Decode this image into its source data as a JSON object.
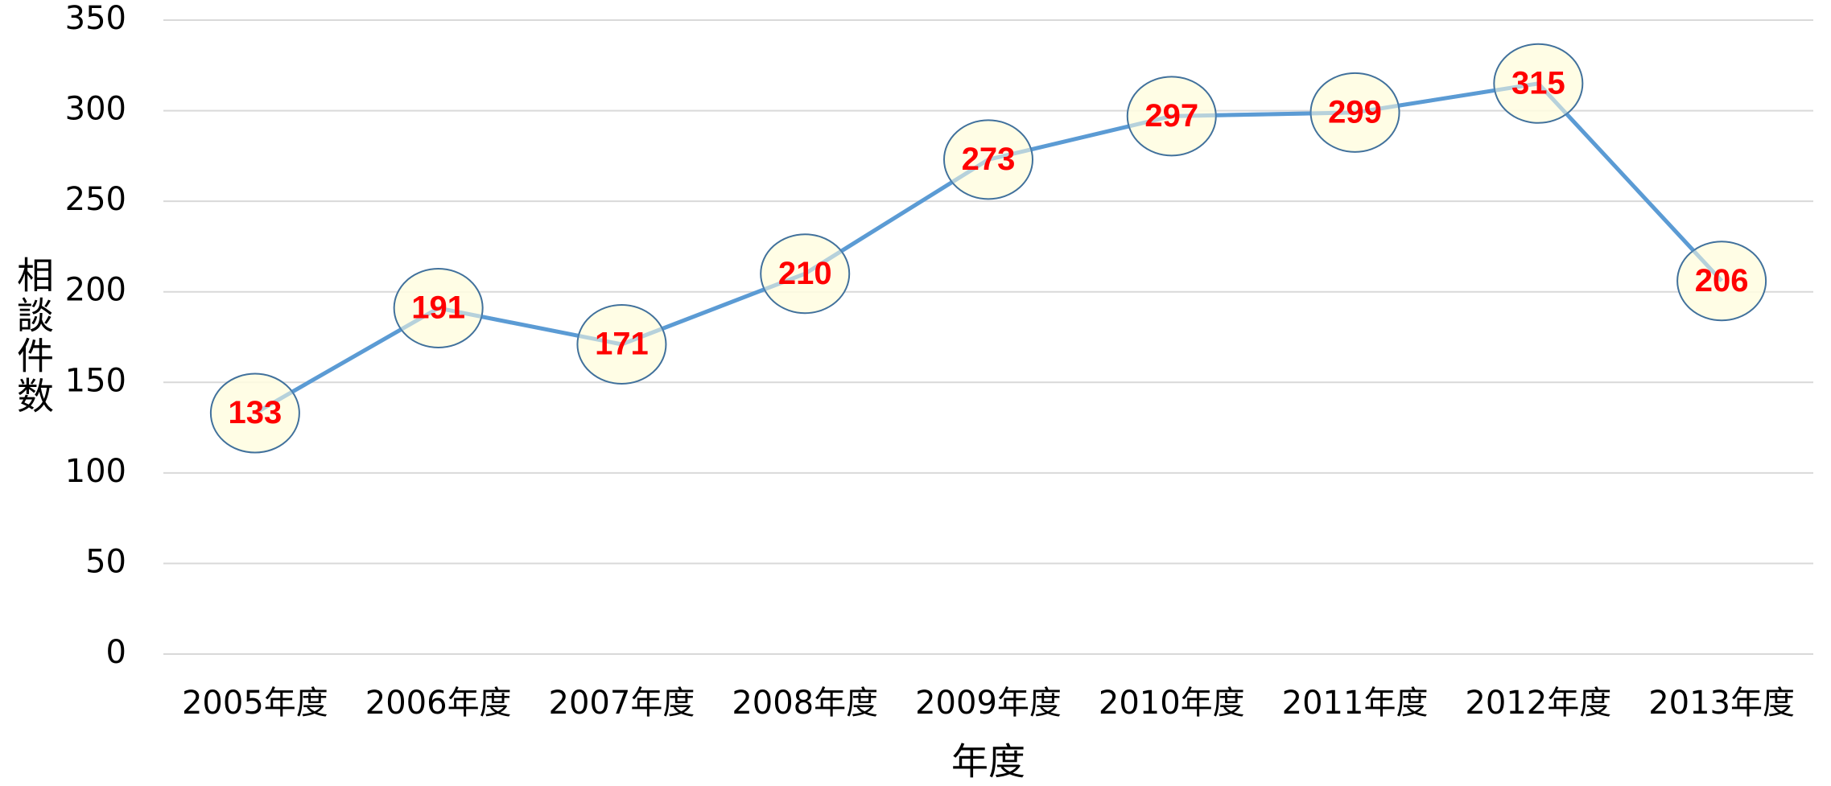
{
  "chart_data": {
    "type": "line",
    "x_label": "年度",
    "y_label": "相談件数",
    "categories": [
      "2005年度",
      "2006年度",
      "2007年度",
      "2008年度",
      "2009年度",
      "2010年度",
      "2011年度",
      "2012年度",
      "2013年度"
    ],
    "series": [
      {
        "color": "#5b9bd5",
        "values": [
          133,
          191,
          171,
          210,
          273,
          297,
          299,
          315,
          206
        ]
      }
    ],
    "marker_fill": "#fffde0",
    "marker_stroke": "#41719c",
    "label_color": "#ff0000",
    "ylim": [
      0,
      350
    ],
    "yticks": [
      0,
      50,
      100,
      150,
      200,
      250,
      300,
      350
    ],
    "grid": true
  }
}
